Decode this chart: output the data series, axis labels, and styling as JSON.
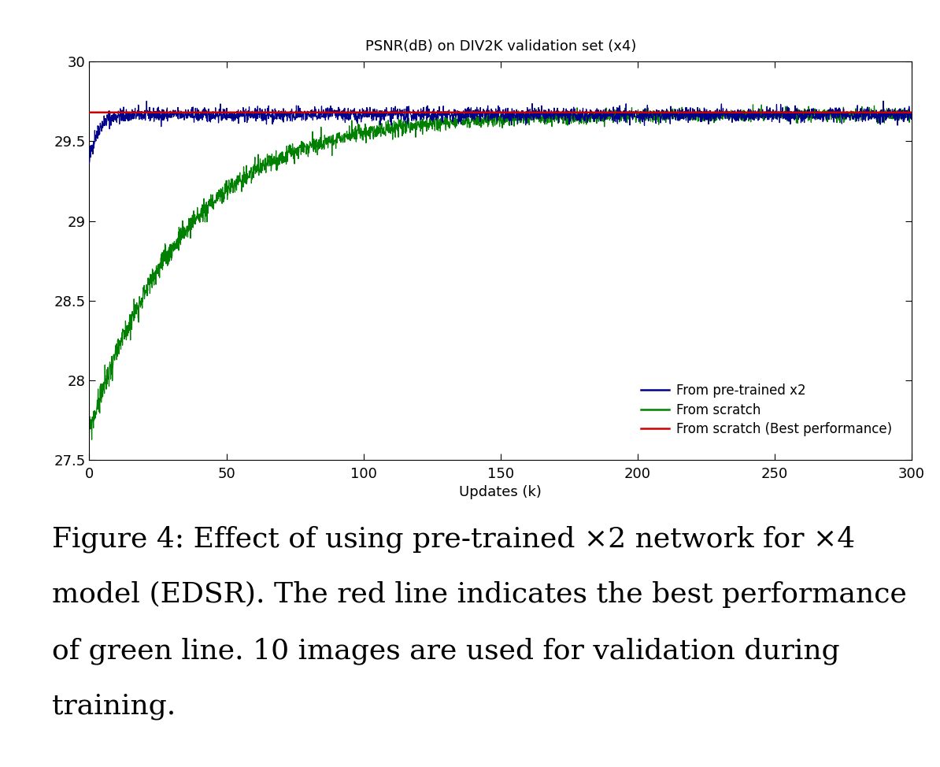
{
  "title": "PSNR(dB) on DIV2K validation set (x4)",
  "xlabel": "Updates (k)",
  "xlim": [
    0,
    300
  ],
  "ylim": [
    27.5,
    30
  ],
  "yticks": [
    27.5,
    28,
    28.5,
    29,
    29.5,
    30
  ],
  "xticks": [
    0,
    50,
    100,
    150,
    200,
    250,
    300
  ],
  "blue_color": "#00008B",
  "green_color": "#008000",
  "red_color": "#CC0000",
  "red_line_value": 29.68,
  "blue_start": 29.38,
  "blue_converge": 29.665,
  "blue_tau": 3.0,
  "green_start": 27.68,
  "green_converge": 29.665,
  "green_tau": 35.0,
  "legend_labels": [
    "From pre-trained x2",
    "From scratch",
    "From scratch (Best performance)"
  ],
  "caption_line1": "Figure 4: Effect of using pre-trained ×2 network for ×4",
  "caption_line2": "model (EDSR). The red line indicates the best performance",
  "caption_line3": "of green line. 10 images are used for validation during",
  "caption_line4": "training.",
  "title_fontsize": 13,
  "axis_fontsize": 13,
  "tick_fontsize": 13,
  "legend_fontsize": 12,
  "caption_fontsize": 26
}
